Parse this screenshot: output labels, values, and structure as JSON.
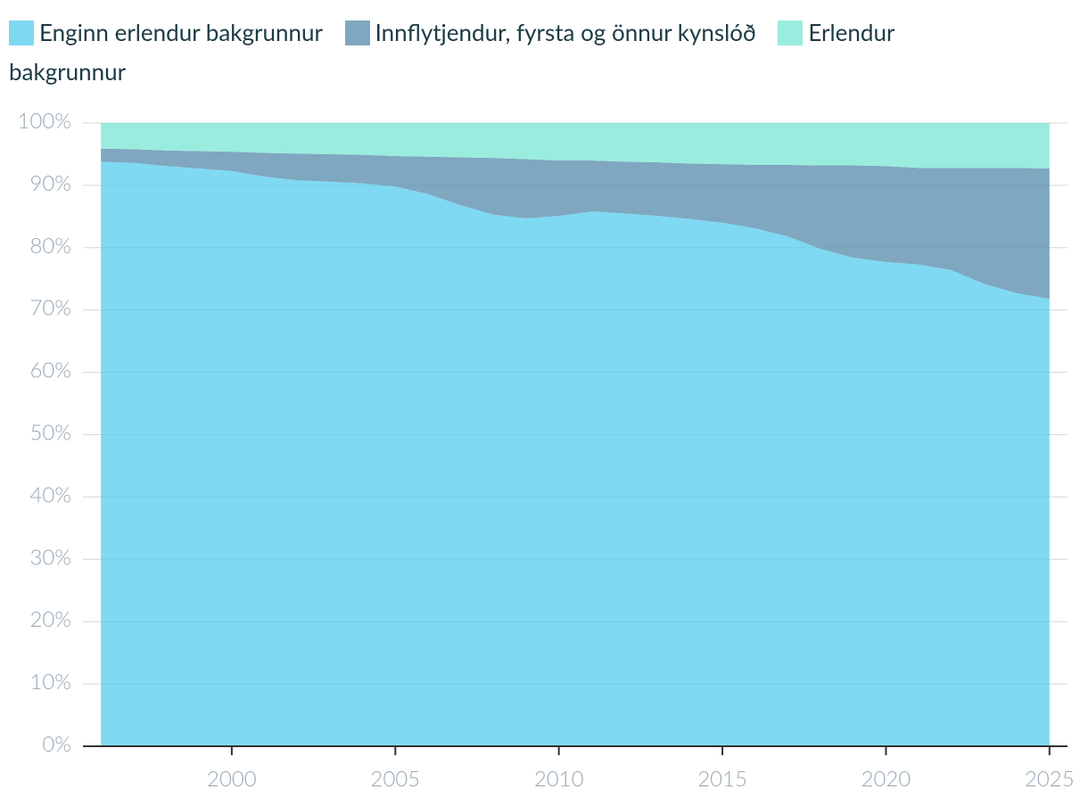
{
  "chart_data": {
    "type": "stacked-area",
    "x": [
      1996,
      1997,
      1998,
      1999,
      2000,
      2001,
      2002,
      2003,
      2004,
      2005,
      2006,
      2007,
      2008,
      2009,
      2010,
      2011,
      2012,
      2013,
      2014,
      2015,
      2016,
      2017,
      2018,
      2019,
      2020,
      2021,
      2022,
      2023,
      2024,
      2025
    ],
    "series": [
      {
        "name": "Enginn erlendur bakgrunnur",
        "color": "#7fd9f3",
        "values": [
          93.8,
          93.6,
          93.1,
          92.7,
          92.3,
          91.4,
          90.8,
          90.6,
          90.3,
          89.8,
          88.6,
          86.8,
          85.3,
          84.7,
          85.1,
          85.8,
          85.5,
          85.1,
          84.6,
          84.0,
          83.1,
          81.8,
          79.8,
          78.4,
          77.7,
          77.3,
          76.4,
          74.2,
          72.7,
          71.8
        ]
      },
      {
        "name": "Innflytjendur, fyrsta og önnur kynslóð",
        "color": "#7fa7c0",
        "values": [
          2.1,
          2.2,
          2.5,
          2.8,
          3.1,
          3.8,
          4.3,
          4.4,
          4.6,
          4.9,
          6.0,
          7.7,
          9.1,
          9.5,
          8.9,
          8.2,
          8.3,
          8.6,
          8.9,
          9.4,
          10.2,
          11.5,
          13.4,
          14.8,
          15.4,
          15.5,
          16.4,
          18.6,
          20.1,
          20.9
        ]
      },
      {
        "name": "Erlendur bakgrunnur",
        "color": "#9aecdf",
        "values": [
          4.1,
          4.2,
          4.4,
          4.5,
          4.6,
          4.8,
          4.9,
          5.0,
          5.1,
          5.3,
          5.4,
          5.5,
          5.6,
          5.8,
          6.0,
          6.0,
          6.2,
          6.3,
          6.5,
          6.6,
          6.7,
          6.7,
          6.8,
          6.8,
          6.9,
          7.2,
          7.2,
          7.2,
          7.2,
          7.3
        ]
      }
    ],
    "xlim": [
      1995.45,
      2025.55
    ],
    "xticks": [
      2000,
      2005,
      2010,
      2015,
      2020,
      2025
    ],
    "ylim": [
      0,
      100
    ],
    "yticks": [
      {
        "value": 0,
        "label": "0%"
      },
      {
        "value": 10,
        "label": "10%"
      },
      {
        "value": 20,
        "label": "20%"
      },
      {
        "value": 30,
        "label": "30%"
      },
      {
        "value": 40,
        "label": "40%"
      },
      {
        "value": 50,
        "label": "50%"
      },
      {
        "value": 60,
        "label": "60%"
      },
      {
        "value": 70,
        "label": "70%"
      },
      {
        "value": 80,
        "label": "80%"
      },
      {
        "value": 90,
        "label": "90%"
      },
      {
        "value": 100,
        "label": "100%"
      }
    ],
    "grid": true,
    "legend": "top"
  }
}
